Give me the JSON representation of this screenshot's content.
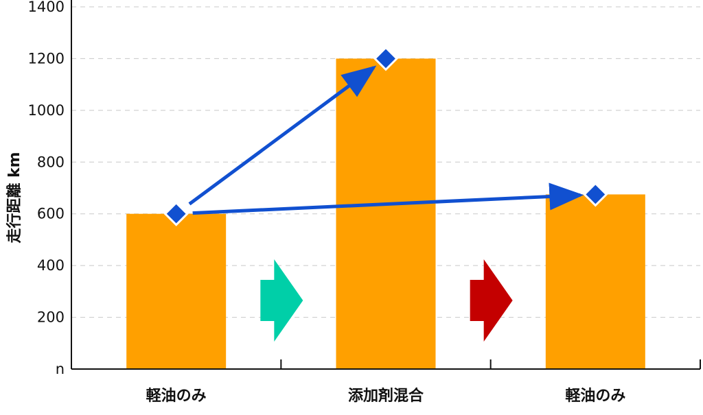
{
  "chart_data": {
    "type": "bar",
    "ylabel": "走行距離 km",
    "xlabel": "",
    "ylim": [
      0,
      1400
    ],
    "yticks": [
      0,
      200,
      400,
      600,
      800,
      1000,
      1200,
      1400
    ],
    "ytick_labels": [
      "n",
      "200",
      "400",
      "600",
      "800",
      "1000",
      "1200",
      "1400"
    ],
    "categories": [
      "軽油のみ",
      "添加剤混合",
      "軽油のみ"
    ],
    "values": [
      600,
      1200,
      675
    ],
    "bar_color": "#FFA000",
    "marker_color": "#1150D0",
    "grid": true,
    "transition_arrows": [
      {
        "between": [
          0,
          1
        ],
        "color": "#00CFA8"
      },
      {
        "between": [
          1,
          2
        ],
        "color": "#C40000"
      }
    ],
    "trend_arrows": [
      {
        "from": 0,
        "to": 1
      },
      {
        "from": 0,
        "to": 2
      }
    ]
  }
}
